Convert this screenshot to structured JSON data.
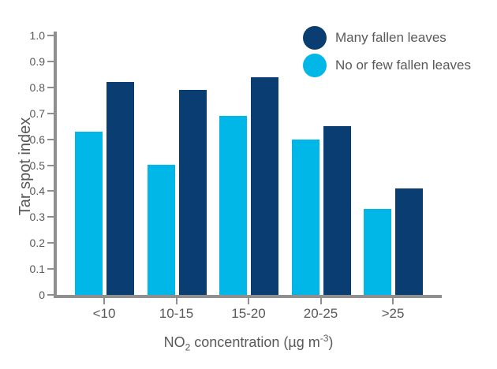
{
  "chart_data": {
    "type": "bar",
    "title": "",
    "categories": [
      "<10",
      "10-15",
      "15-20",
      "20-25",
      ">25"
    ],
    "series": [
      {
        "name": "No or few fallen leaves",
        "color": "#00b7e8",
        "slot": 0,
        "values": [
          0.63,
          0.5,
          0.69,
          0.6,
          0.33
        ]
      },
      {
        "name": "Many fallen leaves",
        "color": "#0a3d72",
        "slot": 1,
        "values": [
          0.82,
          0.79,
          0.84,
          0.65,
          0.41
        ]
      }
    ],
    "ylabel": "Tar spot index",
    "xlabel": "NO2 concentration (µg m-3)",
    "xlabel_parts": {
      "prefix": "NO",
      "sub": "2",
      "mid": " concentration (µg m",
      "sup": "-3",
      "suffix": ")"
    },
    "ylim": [
      0,
      1.0
    ],
    "yticks": [
      1.0,
      0.9,
      0.8,
      0.7,
      0.6,
      0.5,
      0.4,
      0.3,
      0.2,
      0.1,
      0
    ],
    "ytick_labels": [
      "1.0",
      "0.9",
      "0.8",
      "0.7",
      "0.6",
      "0.5",
      "0.4",
      "0.3",
      "0.2",
      "0.1",
      "0"
    ],
    "grid": false,
    "legend_position": "top-right",
    "legend": [
      {
        "label": "Many fallen leaves",
        "color": "#0a3d72"
      },
      {
        "label": "No or few fallen leaves",
        "color": "#00b7e8"
      }
    ]
  },
  "colors": {
    "axis": "#8f8f8f",
    "text": "#595959",
    "background": "#ffffff",
    "series_dark": "#0a3d72",
    "series_light": "#00b7e8"
  }
}
